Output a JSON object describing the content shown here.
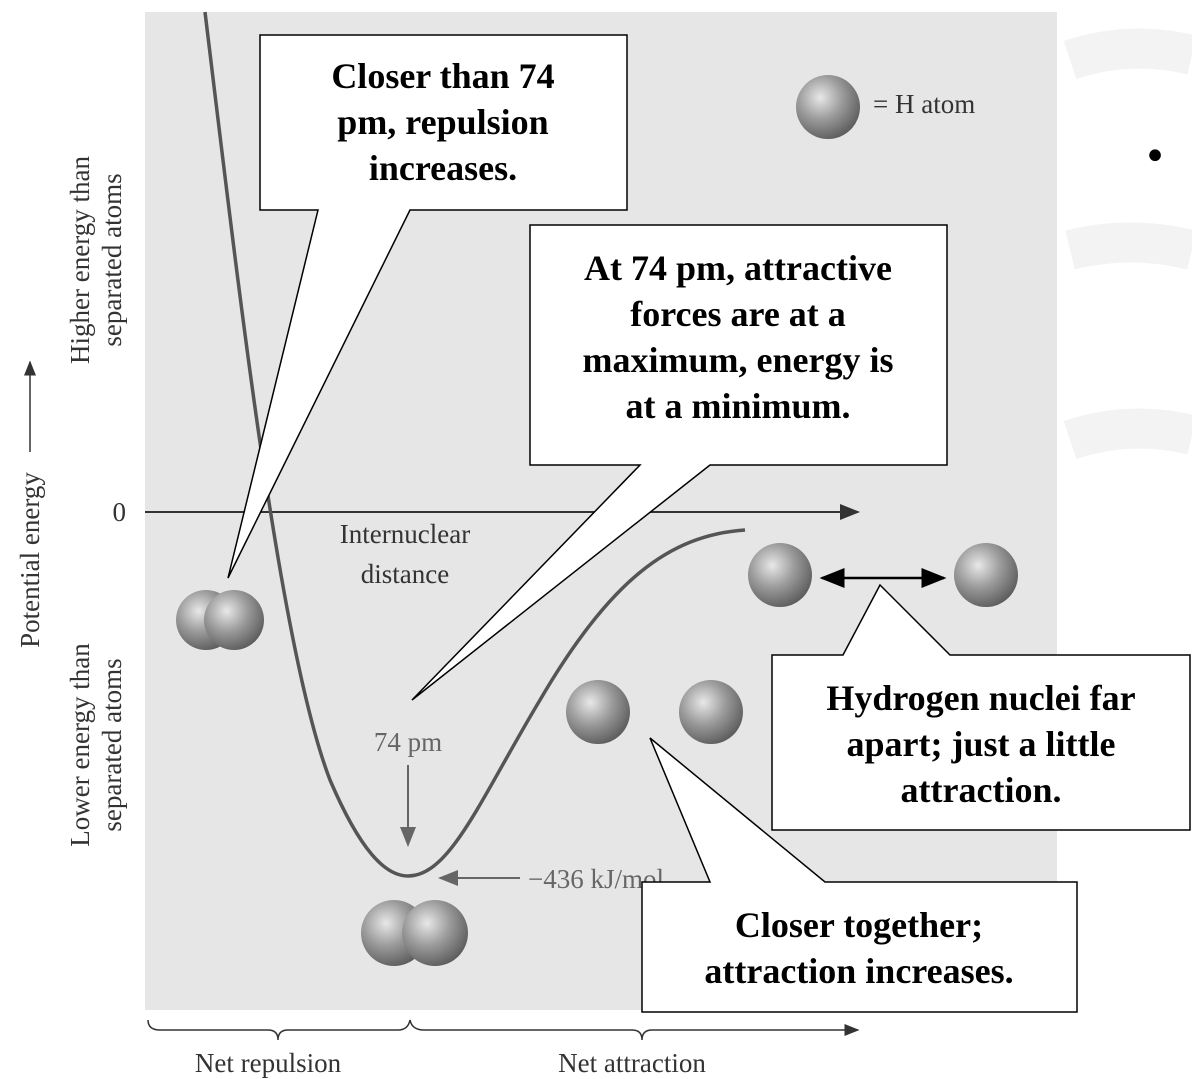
{
  "axes": {
    "y_label": "Potential energy",
    "y_upper": [
      "Higher energy than",
      "separated atoms"
    ],
    "y_lower": [
      "Lower energy than",
      "separated atoms"
    ],
    "zero": "0",
    "x_label": [
      "Internuclear",
      "distance"
    ],
    "regions": [
      "Net repulsion",
      "Net attraction"
    ]
  },
  "legend": "= H atom",
  "annotations": {
    "bond_length": "74 pm",
    "energy": "−436 kJ/mol"
  },
  "callouts": [
    {
      "lines": [
        "Closer than 74",
        "pm, repulsion",
        "increases."
      ]
    },
    {
      "lines": [
        "At 74 pm, attractive",
        "forces are at a",
        "maximum, energy is",
        "at a minimum."
      ]
    },
    {
      "lines": [
        "Hydrogen nuclei far",
        "apart; just a little",
        "attraction."
      ]
    },
    {
      "lines": [
        "Closer together;",
        "attraction increases."
      ]
    }
  ],
  "bullet": "•"
}
